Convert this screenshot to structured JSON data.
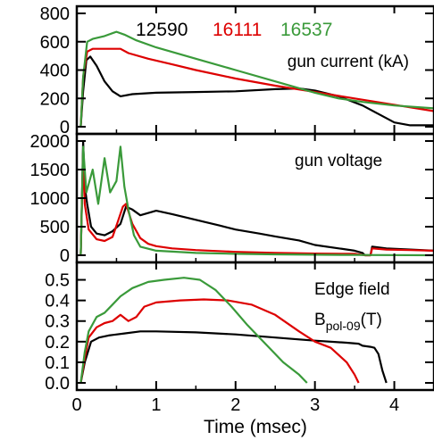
{
  "chart_data": [
    {
      "type": "line",
      "title": "gun current (kA)",
      "ylim": [
        0,
        800
      ],
      "yticks": [
        0,
        200,
        400,
        600,
        800
      ],
      "xlim": [
        0,
        4.5
      ],
      "legend": [
        "12590",
        "16111",
        "16537"
      ],
      "series": [
        {
          "name": "12590",
          "color": "#000000",
          "points": [
            [
              0.05,
              0
            ],
            [
              0.08,
              250
            ],
            [
              0.12,
              470
            ],
            [
              0.17,
              495
            ],
            [
              0.25,
              430
            ],
            [
              0.35,
              320
            ],
            [
              0.45,
              250
            ],
            [
              0.55,
              215
            ],
            [
              0.7,
              230
            ],
            [
              1.0,
              240
            ],
            [
              1.5,
              245
            ],
            [
              2.0,
              250
            ],
            [
              2.5,
              265
            ],
            [
              2.8,
              270
            ],
            [
              3.0,
              255
            ],
            [
              3.3,
              215
            ],
            [
              3.6,
              150
            ],
            [
              3.8,
              90
            ],
            [
              4.0,
              30
            ],
            [
              4.2,
              10
            ],
            [
              4.5,
              10
            ]
          ]
        },
        {
          "name": "16111",
          "color": "#dd0000",
          "points": [
            [
              0.05,
              0
            ],
            [
              0.08,
              350
            ],
            [
              0.13,
              530
            ],
            [
              0.2,
              550
            ],
            [
              0.4,
              550
            ],
            [
              0.55,
              550
            ],
            [
              0.65,
              520
            ],
            [
              0.9,
              480
            ],
            [
              1.2,
              440
            ],
            [
              1.5,
              400
            ],
            [
              2.0,
              340
            ],
            [
              2.5,
              290
            ],
            [
              3.0,
              245
            ],
            [
              3.5,
              200
            ],
            [
              4.0,
              155
            ],
            [
              4.5,
              110
            ]
          ]
        },
        {
          "name": "16537",
          "color": "#3a9a3a",
          "points": [
            [
              0.05,
              0
            ],
            [
              0.08,
              350
            ],
            [
              0.13,
              600
            ],
            [
              0.2,
              620
            ],
            [
              0.35,
              640
            ],
            [
              0.5,
              670
            ],
            [
              0.6,
              650
            ],
            [
              0.75,
              610
            ],
            [
              1.0,
              560
            ],
            [
              1.5,
              480
            ],
            [
              2.0,
              400
            ],
            [
              2.5,
              320
            ],
            [
              3.0,
              240
            ],
            [
              3.3,
              200
            ],
            [
              3.6,
              175
            ],
            [
              4.0,
              150
            ],
            [
              4.5,
              130
            ]
          ]
        }
      ]
    },
    {
      "type": "line",
      "title": "gun voltage",
      "ylim": [
        0,
        2000
      ],
      "yticks": [
        0,
        500,
        1000,
        1500,
        2000
      ],
      "xlim": [
        0,
        4.5
      ],
      "series": [
        {
          "name": "12590",
          "color": "#000000",
          "points": [
            [
              0.05,
              0
            ],
            [
              0.08,
              2000
            ],
            [
              0.1,
              1200
            ],
            [
              0.13,
              900
            ],
            [
              0.18,
              500
            ],
            [
              0.25,
              380
            ],
            [
              0.35,
              350
            ],
            [
              0.45,
              420
            ],
            [
              0.55,
              550
            ],
            [
              0.62,
              850
            ],
            [
              0.7,
              800
            ],
            [
              0.8,
              700
            ],
            [
              1.0,
              780
            ],
            [
              1.2,
              720
            ],
            [
              1.5,
              620
            ],
            [
              1.8,
              520
            ],
            [
              2.0,
              450
            ],
            [
              2.3,
              380
            ],
            [
              2.5,
              330
            ],
            [
              2.8,
              260
            ],
            [
              3.0,
              180
            ],
            [
              3.3,
              120
            ],
            [
              3.5,
              80
            ],
            [
              3.6,
              40
            ],
            [
              3.63,
              0
            ],
            [
              3.7,
              0
            ],
            [
              3.72,
              150
            ],
            [
              3.9,
              120
            ],
            [
              4.2,
              100
            ],
            [
              4.5,
              80
            ]
          ]
        },
        {
          "name": "16111",
          "color": "#dd0000",
          "points": [
            [
              0.05,
              0
            ],
            [
              0.08,
              1800
            ],
            [
              0.1,
              900
            ],
            [
              0.15,
              450
            ],
            [
              0.25,
              280
            ],
            [
              0.35,
              250
            ],
            [
              0.45,
              320
            ],
            [
              0.52,
              600
            ],
            [
              0.58,
              850
            ],
            [
              0.62,
              900
            ],
            [
              0.7,
              550
            ],
            [
              0.8,
              300
            ],
            [
              0.9,
              200
            ],
            [
              1.0,
              160
            ],
            [
              1.2,
              120
            ],
            [
              1.5,
              90
            ],
            [
              2.0,
              60
            ],
            [
              2.5,
              40
            ],
            [
              3.0,
              30
            ],
            [
              3.5,
              25
            ],
            [
              3.63,
              0
            ],
            [
              3.7,
              0
            ],
            [
              3.72,
              120
            ],
            [
              3.9,
              100
            ],
            [
              4.2,
              90
            ],
            [
              4.5,
              80
            ]
          ]
        },
        {
          "name": "16537",
          "color": "#3a9a3a",
          "points": [
            [
              0.05,
              0
            ],
            [
              0.08,
              1900
            ],
            [
              0.12,
              1100
            ],
            [
              0.2,
              1500
            ],
            [
              0.27,
              900
            ],
            [
              0.35,
              1700
            ],
            [
              0.42,
              1100
            ],
            [
              0.5,
              1300
            ],
            [
              0.55,
              1900
            ],
            [
              0.6,
              1200
            ],
            [
              0.65,
              800
            ],
            [
              0.72,
              350
            ],
            [
              0.8,
              150
            ],
            [
              1.0,
              80
            ],
            [
              1.5,
              40
            ],
            [
              2.0,
              25
            ],
            [
              2.5,
              15
            ],
            [
              3.0,
              10
            ],
            [
              3.5,
              5
            ],
            [
              4.5,
              0
            ]
          ]
        }
      ]
    },
    {
      "type": "line",
      "title": "Edge field",
      "title_line2_main": "B",
      "title_line2_sub": "pol-09",
      "title_line2_tail": "(T)",
      "ylim": [
        0,
        0.55
      ],
      "yticks": [
        0.0,
        0.1,
        0.2,
        0.3,
        0.4,
        0.5
      ],
      "xlim": [
        0,
        4.5
      ],
      "xticks": [
        0,
        1,
        2,
        3,
        4
      ],
      "xlabel": "Time  (msec)",
      "series": [
        {
          "name": "12590",
          "color": "#000000",
          "points": [
            [
              0.05,
              0
            ],
            [
              0.1,
              0.1
            ],
            [
              0.18,
              0.2
            ],
            [
              0.28,
              0.22
            ],
            [
              0.4,
              0.23
            ],
            [
              0.6,
              0.24
            ],
            [
              0.8,
              0.25
            ],
            [
              1.0,
              0.25
            ],
            [
              1.5,
              0.245
            ],
            [
              2.0,
              0.235
            ],
            [
              2.5,
              0.22
            ],
            [
              3.0,
              0.205
            ],
            [
              3.4,
              0.195
            ],
            [
              3.55,
              0.19
            ],
            [
              3.6,
              0.18
            ],
            [
              3.7,
              0.175
            ],
            [
              3.75,
              0.17
            ],
            [
              3.8,
              0.14
            ],
            [
              3.85,
              0.06
            ],
            [
              3.9,
              0
            ]
          ]
        },
        {
          "name": "16111",
          "color": "#dd0000",
          "points": [
            [
              0.05,
              0
            ],
            [
              0.1,
              0.12
            ],
            [
              0.15,
              0.22
            ],
            [
              0.25,
              0.27
            ],
            [
              0.35,
              0.29
            ],
            [
              0.45,
              0.3
            ],
            [
              0.55,
              0.33
            ],
            [
              0.65,
              0.3
            ],
            [
              0.75,
              0.32
            ],
            [
              0.85,
              0.37
            ],
            [
              1.0,
              0.39
            ],
            [
              1.3,
              0.4
            ],
            [
              1.6,
              0.405
            ],
            [
              1.9,
              0.4
            ],
            [
              2.2,
              0.38
            ],
            [
              2.5,
              0.33
            ],
            [
              2.8,
              0.25
            ],
            [
              3.0,
              0.2
            ],
            [
              3.2,
              0.17
            ],
            [
              3.4,
              0.1
            ],
            [
              3.5,
              0.04
            ],
            [
              3.55,
              0
            ]
          ]
        },
        {
          "name": "16537",
          "color": "#3a9a3a",
          "points": [
            [
              0.05,
              0
            ],
            [
              0.1,
              0.15
            ],
            [
              0.15,
              0.25
            ],
            [
              0.25,
              0.32
            ],
            [
              0.35,
              0.34
            ],
            [
              0.45,
              0.38
            ],
            [
              0.55,
              0.42
            ],
            [
              0.7,
              0.46
            ],
            [
              0.9,
              0.49
            ],
            [
              1.1,
              0.5
            ],
            [
              1.35,
              0.51
            ],
            [
              1.55,
              0.5
            ],
            [
              1.75,
              0.45
            ],
            [
              1.95,
              0.37
            ],
            [
              2.15,
              0.28
            ],
            [
              2.4,
              0.18
            ],
            [
              2.6,
              0.1
            ],
            [
              2.8,
              0.04
            ],
            [
              2.9,
              0
            ]
          ]
        }
      ]
    }
  ]
}
